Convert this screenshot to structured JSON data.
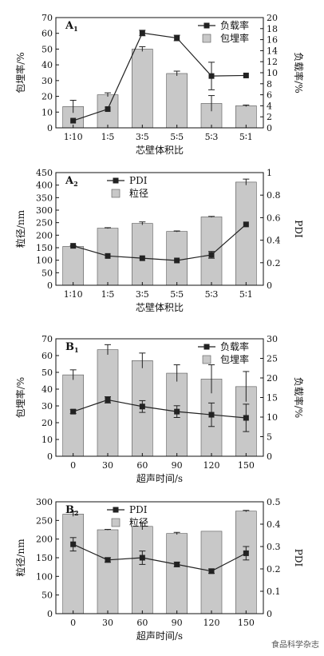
{
  "watermark": "食品科学杂志",
  "colors": {
    "bar": "#c8c8c8",
    "line": "#222222",
    "axis": "#111111"
  },
  "chart_data": [
    {
      "type": "bar",
      "panel_label": "A",
      "panel_sub": "1",
      "categories": [
        "1∶10",
        "1∶5",
        "3∶5",
        "5∶5",
        "5∶3",
        "5∶1"
      ],
      "xlabel": "芯壁体积比",
      "ylabel": "包埋率/%",
      "ylim": [
        0,
        70
      ],
      "yticks": [
        0,
        10,
        20,
        30,
        40,
        50,
        60,
        70
      ],
      "y2label": "负载率/%",
      "y2lim": [
        0,
        20
      ],
      "y2ticks": [
        0,
        2,
        4,
        6,
        8,
        10,
        12,
        14,
        16,
        18,
        20
      ],
      "legend": {
        "position": "top-right",
        "line_label": "负载率",
        "bar_label": "包埋率"
      },
      "series": [
        {
          "name": "包埋率",
          "kind": "bar",
          "axis": "left",
          "values": [
            13.5,
            21,
            50,
            34.5,
            15.5,
            14
          ],
          "errors": [
            4,
            1.2,
            1.5,
            1.5,
            5,
            0.5
          ]
        },
        {
          "name": "负载率",
          "kind": "line",
          "axis": "right",
          "values": [
            1.3,
            3.4,
            17.2,
            16.3,
            9.4,
            9.5
          ],
          "errors": [
            0,
            0,
            0.5,
            0.5,
            2.5,
            0
          ]
        }
      ]
    },
    {
      "type": "bar",
      "panel_label": "A",
      "panel_sub": "2",
      "categories": [
        "1∶10",
        "1∶5",
        "3∶5",
        "5∶5",
        "5∶3",
        "5∶1"
      ],
      "xlabel": "芯壁体积比",
      "ylabel": "粒径/nm",
      "ylim": [
        0,
        450
      ],
      "yticks": [
        0,
        50,
        100,
        150,
        200,
        250,
        300,
        350,
        400,
        450
      ],
      "y2label": "PDI",
      "y2lim": [
        0,
        1.0
      ],
      "y2ticks": [
        0.0,
        0.2,
        0.4,
        0.6,
        0.8,
        1.0
      ],
      "legend": {
        "position": "top-left",
        "line_label": "PDI",
        "bar_label": "粒径"
      },
      "series": [
        {
          "name": "粒径",
          "kind": "bar",
          "axis": "left",
          "values": [
            155,
            228,
            247,
            215,
            273,
            412
          ],
          "errors": [
            3,
            2,
            6,
            2,
            2,
            12
          ]
        },
        {
          "name": "PDI",
          "kind": "line",
          "axis": "right",
          "values": [
            0.35,
            0.26,
            0.24,
            0.22,
            0.27,
            0.54
          ],
          "errors": [
            0,
            0,
            0,
            0,
            0.03,
            0
          ]
        }
      ]
    },
    {
      "type": "bar",
      "panel_label": "B",
      "panel_sub": "1",
      "categories": [
        "0",
        "30",
        "60",
        "90",
        "120",
        "150"
      ],
      "xlabel": "超声时间/s",
      "ylabel": "包埋率/%",
      "ylim": [
        0,
        70
      ],
      "yticks": [
        0,
        10,
        20,
        30,
        40,
        50,
        60,
        70
      ],
      "y2label": "负载率/%",
      "y2lim": [
        0,
        30
      ],
      "y2ticks": [
        0,
        5,
        10,
        15,
        20,
        25,
        30
      ],
      "legend": {
        "position": "top-right",
        "line_label": "负载率",
        "bar_label": "包埋率"
      },
      "series": [
        {
          "name": "包埋率",
          "kind": "bar",
          "axis": "left",
          "values": [
            48.5,
            63.5,
            57,
            49.5,
            46,
            41.5
          ],
          "errors": [
            3,
            3,
            4.5,
            5,
            8.5,
            9
          ]
        },
        {
          "name": "负载率",
          "kind": "line",
          "axis": "right",
          "values": [
            11.4,
            14.4,
            12.7,
            11.4,
            10.6,
            9.8
          ],
          "errors": [
            0.5,
            0.8,
            1.5,
            1.5,
            3,
            3.5
          ]
        }
      ]
    },
    {
      "type": "bar",
      "panel_label": "B",
      "panel_sub": "2",
      "categories": [
        "0",
        "30",
        "60",
        "90",
        "120",
        "150"
      ],
      "xlabel": "超声时间/s",
      "ylabel": "粒径/nm",
      "ylim": [
        0,
        300
      ],
      "yticks": [
        0,
        50,
        100,
        150,
        200,
        250,
        300
      ],
      "y2label": "PDI",
      "y2lim": [
        0,
        0.5
      ],
      "y2ticks": [
        0.0,
        0.1,
        0.2,
        0.3,
        0.4,
        0.5
      ],
      "legend": {
        "position": "top-left",
        "line_label": "PDI",
        "bar_label": "粒径"
      },
      "series": [
        {
          "name": "粒径",
          "kind": "bar",
          "axis": "left",
          "values": [
            267,
            225,
            234,
            215,
            221,
            275
          ],
          "errors": [
            6,
            1,
            9,
            3,
            0,
            2
          ]
        },
        {
          "name": "PDI",
          "kind": "line",
          "axis": "right",
          "values": [
            0.31,
            0.24,
            0.25,
            0.22,
            0.19,
            0.27
          ],
          "errors": [
            0.03,
            0.01,
            0.03,
            0.01,
            0.01,
            0.03
          ]
        }
      ]
    }
  ]
}
